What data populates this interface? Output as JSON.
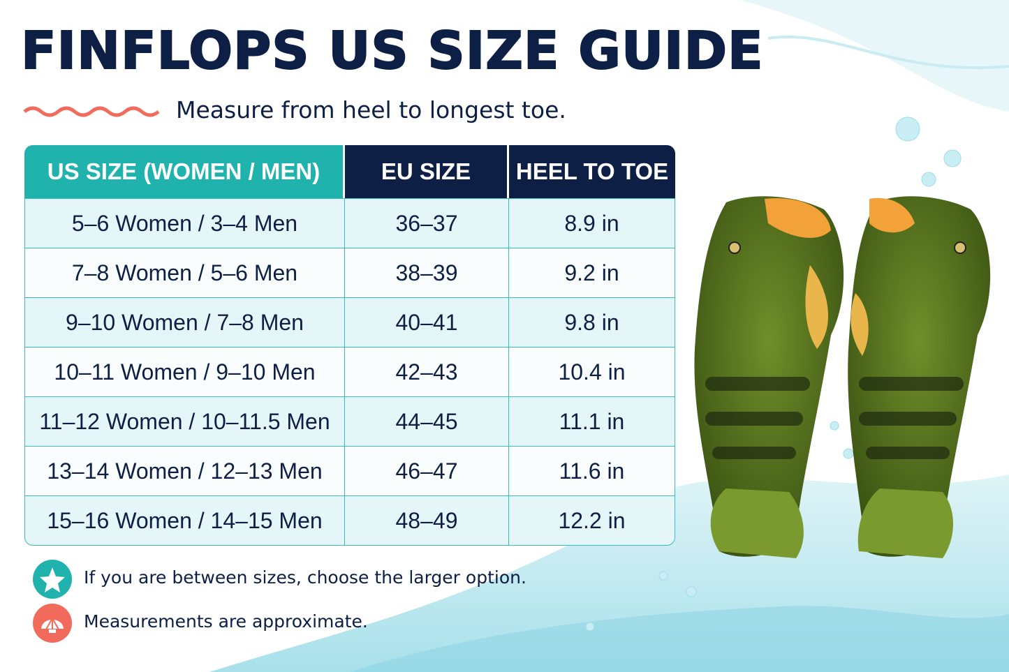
{
  "header": {
    "title": "FINFLOPS US SIZE GUIDE",
    "subtitle": "Measure from heel to longest toe."
  },
  "table": {
    "columns": [
      "US SIZE (WOMEN / MEN)",
      "EU SIZE",
      "HEEL TO TOE"
    ],
    "rows": [
      [
        "5–6 Women / 3–4 Men",
        "36–37",
        "8.9 in"
      ],
      [
        "7–8 Women / 5–6 Men",
        "38–39",
        "9.2 in"
      ],
      [
        "9–10 Women / 7–8 Men",
        "40–41",
        "9.8 in"
      ],
      [
        "10–11 Women / 9–10 Men",
        "42–43",
        "10.4 in"
      ],
      [
        "11–12 Women / 10–11.5 Men",
        "44–45",
        "11.1 in"
      ],
      [
        "13–14 Women / 12–13 Men",
        "46–47",
        "11.6 in"
      ],
      [
        "15–16 Women / 14–15 Men",
        "48–49",
        "12.2 in"
      ]
    ]
  },
  "notes": [
    "If you are between sizes, choose the larger option.",
    "Measurements are approximate."
  ]
}
